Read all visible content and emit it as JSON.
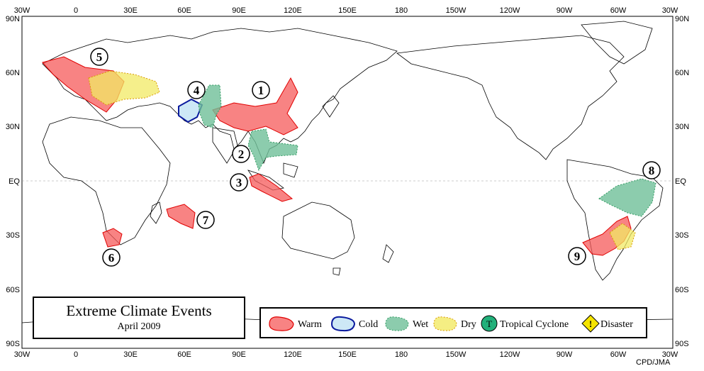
{
  "map": {
    "lon_ticks_top": [
      "30W",
      "0",
      "30E",
      "60E",
      "90E",
      "120E",
      "150E",
      "180",
      "150W",
      "120W",
      "90W",
      "60W",
      "30W"
    ],
    "lon_ticks_bottom": [
      "30W",
      "0",
      "30E",
      "60E",
      "90E",
      "120E",
      "150E",
      "180",
      "150W",
      "120W",
      "90W",
      "60W",
      "30W"
    ],
    "lat_ticks_left": [
      "90N",
      "60N",
      "30N",
      "EQ",
      "30S",
      "60S",
      "90S"
    ],
    "lat_ticks_right": [
      "90N",
      "60N",
      "30N",
      "EQ",
      "30S",
      "60S",
      "90S"
    ]
  },
  "events": [
    {
      "number": "1",
      "type": "Warm"
    },
    {
      "number": "2",
      "type": "Wet"
    },
    {
      "number": "3",
      "type": "Warm"
    },
    {
      "number": "4",
      "type": "Cold"
    },
    {
      "number": "5",
      "type": "Warm"
    },
    {
      "number": "6",
      "type": "Warm"
    },
    {
      "number": "7",
      "type": "Warm"
    },
    {
      "number": "8",
      "type": "Wet"
    },
    {
      "number": "9",
      "type": "Warm"
    }
  ],
  "colors": {
    "warm": "#f55a5a",
    "cold": "#c8e6f5",
    "wet": "#6fbf99",
    "dry": "#f2ea64",
    "cyclone": "#22b07a",
    "disaster": "#f5e400"
  },
  "title": {
    "main": "Extreme Climate Events",
    "sub": "April  2009"
  },
  "legend": {
    "warm": "Warm",
    "cold": "Cold",
    "wet": "Wet",
    "dry": "Dry",
    "cyclone": "Tropical Cyclone",
    "cyclone_symbol": "T",
    "disaster": "Disaster",
    "disaster_symbol": "!"
  },
  "credit": "CPD/JMA"
}
